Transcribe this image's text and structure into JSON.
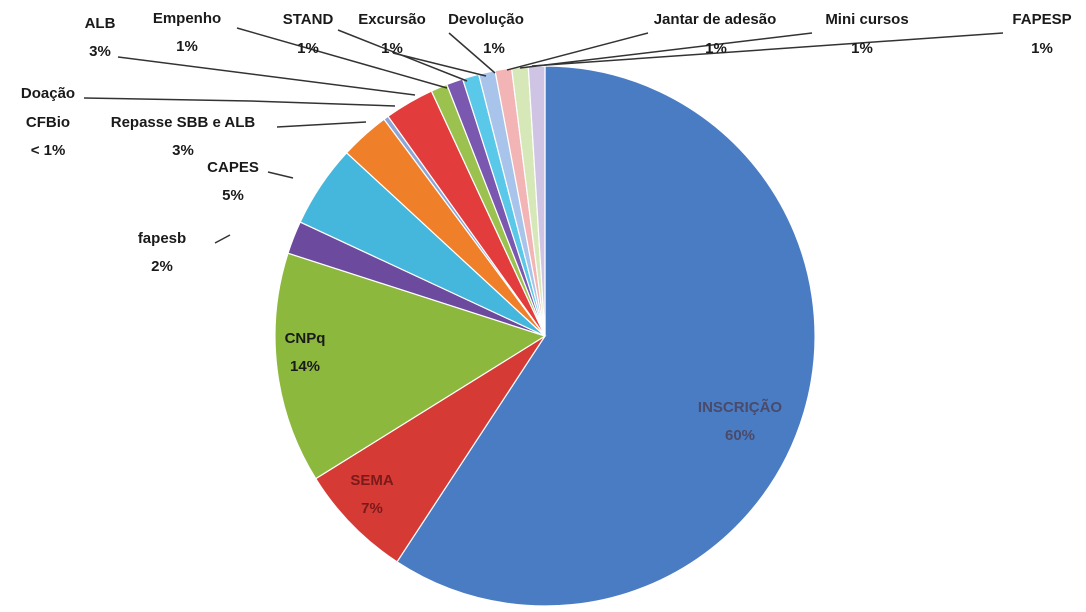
{
  "chart_data": {
    "type": "pie",
    "start": "12 o'clock",
    "direction": "clockwise",
    "slices": [
      {
        "name": "INSCRIÇÃO",
        "pct_label": "60%",
        "value": 60,
        "color": "#4a7cc4"
      },
      {
        "name": "SEMA",
        "pct_label": "7%",
        "value": 7,
        "color": "#d63a35"
      },
      {
        "name": "CNPq",
        "pct_label": "14%",
        "value": 14,
        "color": "#8cb83e"
      },
      {
        "name": "fapesb",
        "pct_label": "2%",
        "value": 2,
        "color": "#6c4a9e"
      },
      {
        "name": "CAPES",
        "pct_label": "5%",
        "value": 5,
        "color": "#45b6dc"
      },
      {
        "name": "Repasse SBB e ALB",
        "pct_label": "3%",
        "value": 3,
        "color": "#f07f2a"
      },
      {
        "name": "Doação CFBio",
        "pct_label": "< 1%",
        "value": 0.3,
        "color": "#8ea6d6"
      },
      {
        "name": "ALB",
        "pct_label": "3%",
        "value": 3,
        "color": "#e23c3c"
      },
      {
        "name": "Empenho",
        "pct_label": "1%",
        "value": 1,
        "color": "#9bc24e"
      },
      {
        "name": "STAND",
        "pct_label": "1%",
        "value": 1,
        "color": "#7a58b0"
      },
      {
        "name": "Excursão",
        "pct_label": "1%",
        "value": 1,
        "color": "#5ac8e8"
      },
      {
        "name": "Devolução",
        "pct_label": "1%",
        "value": 1,
        "color": "#a9c4ea"
      },
      {
        "name": "Jantar de adesão",
        "pct_label": "1%",
        "value": 1,
        "color": "#f2b4b4"
      },
      {
        "name": "Mini cursos",
        "pct_label": "1%",
        "value": 1,
        "color": "#d6e8b8"
      },
      {
        "name": "FAPESP",
        "pct_label": "1%",
        "value": 1,
        "color": "#cfc4e4"
      }
    ]
  }
}
